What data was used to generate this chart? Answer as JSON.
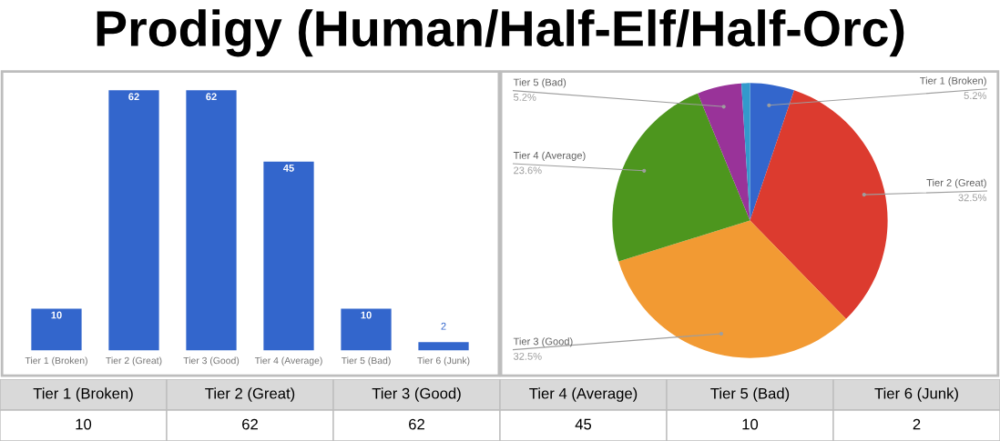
{
  "chart_data": [
    {
      "type": "bar",
      "title": "Prodigy (Human/Half-Elf/Half-Orc)",
      "categories": [
        "Tier 1 (Broken)",
        "Tier 2 (Great)",
        "Tier 3 (Good)",
        "Tier 4 (Average)",
        "Tier 5 (Bad)",
        "Tier 6 (Junk)"
      ],
      "values": [
        10,
        62,
        62,
        45,
        10,
        2
      ],
      "color": "#3366cc",
      "data_labels": true,
      "tick_labels": "x"
    },
    {
      "type": "pie",
      "categories": [
        "Tier 1 (Broken)",
        "Tier 2 (Great)",
        "Tier 3 (Good)",
        "Tier 4 (Average)",
        "Tier 5 (Bad)",
        null
      ],
      "values": [
        5.2,
        32.5,
        32.5,
        23.6,
        5.2,
        1.0
      ],
      "colors": [
        "#3366cc",
        "#dc3b2f",
        "#f29a33",
        "#4d961e",
        "#993399",
        "#3399cc"
      ],
      "value_labels": [
        "5.2%",
        "32.5%",
        "32.5%",
        "23.6%",
        "5.2%",
        null
      ]
    },
    {
      "type": "other",
      "categories": [
        "Tier 1 (Broken)",
        "Tier 2 (Great)",
        "Tier 3 (Good)",
        "Tier 4 (Average)",
        "Tier 5 (Bad)",
        "Tier 6 (Junk)"
      ],
      "values": [
        10,
        62,
        62,
        45,
        10,
        2
      ],
      "data_labels": true
    }
  ]
}
